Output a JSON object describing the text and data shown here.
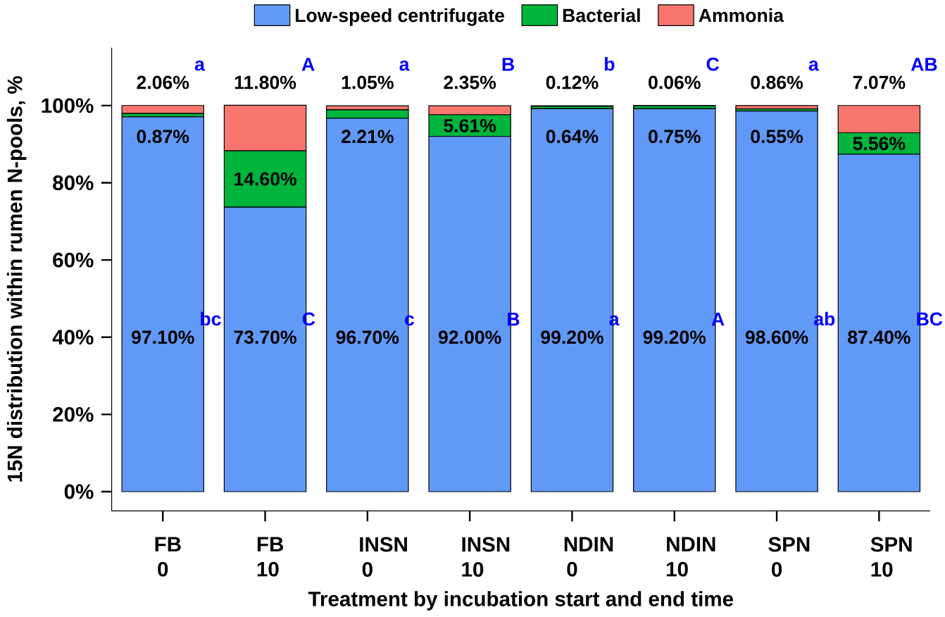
{
  "chart_data": {
    "type": "bar",
    "stacked": true,
    "xlabel": "Treatment by incubation start and end time",
    "ylabel": "15N distribution within rumen N-pools, %",
    "categories": [
      "FB 0",
      "FB 10",
      "INSN 0",
      "INSN 10",
      "NDIN 0",
      "NDIN 10",
      "SPN 0",
      "SPN 10"
    ],
    "series": [
      {
        "name": "Low-speed centrifugate",
        "color": "#6199f7",
        "values": [
          97.1,
          73.7,
          96.7,
          92.0,
          99.2,
          99.2,
          98.6,
          87.4
        ],
        "value_labels": [
          "97.10%",
          "73.70%",
          "96.70%",
          "92.00%",
          "99.20%",
          "99.20%",
          "98.60%",
          "87.40%"
        ]
      },
      {
        "name": "Bacterial",
        "color": "#00b43c",
        "values": [
          0.87,
          14.6,
          2.21,
          5.61,
          0.64,
          0.75,
          0.55,
          5.56
        ],
        "value_labels": [
          "0.87%",
          "14.60%",
          "2.21%",
          "5.61%",
          "0.64%",
          "0.75%",
          "0.55%",
          "5.56%"
        ]
      },
      {
        "name": "Ammonia",
        "color": "#f8766d",
        "values": [
          2.06,
          11.8,
          1.05,
          2.35,
          0.12,
          0.06,
          0.86,
          7.07
        ],
        "value_labels": [
          "2.06%",
          "11.80%",
          "1.05%",
          "2.35%",
          "0.12%",
          "0.06%",
          "0.86%",
          "7.07%"
        ]
      }
    ],
    "ylim": [
      -5,
      115
    ],
    "yticks": [
      {
        "value": 0,
        "label": "0%"
      },
      {
        "value": 20,
        "label": "20%"
      },
      {
        "value": 40,
        "label": "40%"
      },
      {
        "value": 60,
        "label": "60%"
      },
      {
        "value": 80,
        "label": "80%"
      },
      {
        "value": 100,
        "label": "100%"
      }
    ],
    "legend": "top",
    "grid": false,
    "annotations": [
      "a",
      "A",
      "a",
      "B",
      "b",
      "C",
      "a",
      "AB",
      "bc",
      "C",
      "c",
      "B",
      "a",
      "A",
      "ab",
      "BC"
    ]
  }
}
